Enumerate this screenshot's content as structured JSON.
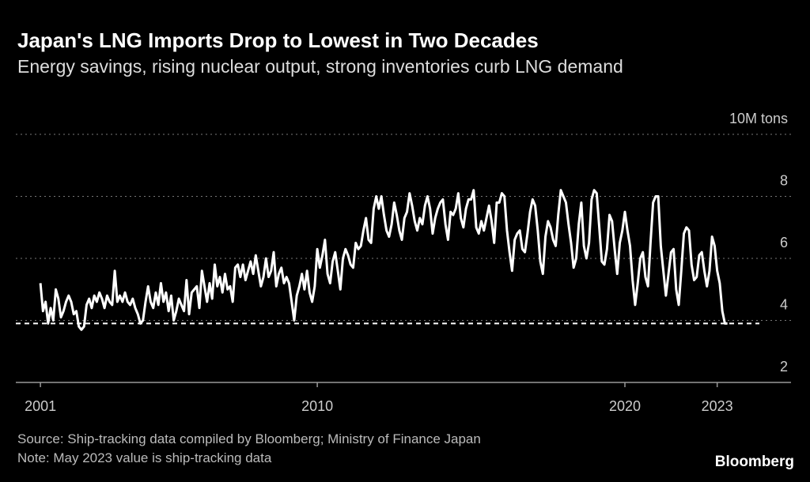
{
  "chart_data": {
    "type": "line",
    "title": "Japan's LNG Imports Drop to Lowest in Two Decades",
    "subtitle": "Energy savings, rising nuclear output, strong inventories curb LNG demand",
    "source": "Source: Ship-tracking data compiled by Bloomberg; Ministry of Finance Japan",
    "note": "Note: May 2023 value is ship-tracking data",
    "brand": "Bloomberg",
    "xlim": [
      2000.2,
      2025.4
    ],
    "xticks": [
      2001,
      2010,
      2020,
      2023
    ],
    "ylim": [
      2,
      10
    ],
    "yticks": [
      2,
      4,
      6,
      8,
      {
        "value": 10,
        "label": "10M tons"
      }
    ],
    "grid": true,
    "reference_line": 3.9,
    "color": "#ffffff",
    "x": [
      2001,
      2001.083,
      2001.167,
      2001.25,
      2001.333,
      2001.417,
      2001.5,
      2001.583,
      2001.667,
      2001.75,
      2001.833,
      2001.917,
      2002,
      2002.083,
      2002.167,
      2002.25,
      2002.333,
      2002.417,
      2002.5,
      2002.583,
      2002.667,
      2002.75,
      2002.833,
      2002.917,
      2003,
      2003.083,
      2003.167,
      2003.25,
      2003.333,
      2003.417,
      2003.5,
      2003.583,
      2003.667,
      2003.75,
      2003.833,
      2003.917,
      2004,
      2004.083,
      2004.167,
      2004.25,
      2004.333,
      2004.417,
      2004.5,
      2004.583,
      2004.667,
      2004.75,
      2004.833,
      2004.917,
      2005,
      2005.083,
      2005.167,
      2005.25,
      2005.333,
      2005.417,
      2005.5,
      2005.583,
      2005.667,
      2005.75,
      2005.833,
      2005.917,
      2006,
      2006.083,
      2006.167,
      2006.25,
      2006.333,
      2006.417,
      2006.5,
      2006.583,
      2006.667,
      2006.75,
      2006.833,
      2006.917,
      2007,
      2007.083,
      2007.167,
      2007.25,
      2007.333,
      2007.417,
      2007.5,
      2007.583,
      2007.667,
      2007.75,
      2007.833,
      2007.917,
      2008,
      2008.083,
      2008.167,
      2008.25,
      2008.333,
      2008.417,
      2008.5,
      2008.583,
      2008.667,
      2008.75,
      2008.833,
      2008.917,
      2009,
      2009.083,
      2009.167,
      2009.25,
      2009.333,
      2009.417,
      2009.5,
      2009.583,
      2009.667,
      2009.75,
      2009.833,
      2009.917,
      2010,
      2010.083,
      2010.167,
      2010.25,
      2010.333,
      2010.417,
      2010.5,
      2010.583,
      2010.667,
      2010.75,
      2010.833,
      2010.917,
      2011,
      2011.083,
      2011.167,
      2011.25,
      2011.333,
      2011.417,
      2011.5,
      2011.583,
      2011.667,
      2011.75,
      2011.833,
      2011.917,
      2012,
      2012.083,
      2012.167,
      2012.25,
      2012.333,
      2012.417,
      2012.5,
      2012.583,
      2012.667,
      2012.75,
      2012.833,
      2012.917,
      2013,
      2013.083,
      2013.167,
      2013.25,
      2013.333,
      2013.417,
      2013.5,
      2013.583,
      2013.667,
      2013.75,
      2013.833,
      2013.917,
      2014,
      2014.083,
      2014.167,
      2014.25,
      2014.333,
      2014.417,
      2014.5,
      2014.583,
      2014.667,
      2014.75,
      2014.833,
      2014.917,
      2015,
      2015.083,
      2015.167,
      2015.25,
      2015.333,
      2015.417,
      2015.5,
      2015.583,
      2015.667,
      2015.75,
      2015.833,
      2015.917,
      2016,
      2016.083,
      2016.167,
      2016.25,
      2016.333,
      2016.417,
      2016.5,
      2016.583,
      2016.667,
      2016.75,
      2016.833,
      2016.917,
      2017,
      2017.083,
      2017.167,
      2017.25,
      2017.333,
      2017.417,
      2017.5,
      2017.583,
      2017.667,
      2017.75,
      2017.833,
      2017.917,
      2018,
      2018.083,
      2018.167,
      2018.25,
      2018.333,
      2018.417,
      2018.5,
      2018.583,
      2018.667,
      2018.75,
      2018.833,
      2018.917,
      2019,
      2019.083,
      2019.167,
      2019.25,
      2019.333,
      2019.417,
      2019.5,
      2019.583,
      2019.667,
      2019.75,
      2019.833,
      2019.917,
      2020,
      2020.083,
      2020.167,
      2020.25,
      2020.333,
      2020.417,
      2020.5,
      2020.583,
      2020.667,
      2020.75,
      2020.833,
      2020.917,
      2021,
      2021.083,
      2021.167,
      2021.25,
      2021.333,
      2021.417,
      2021.5,
      2021.583,
      2021.667,
      2021.75,
      2021.833,
      2021.917,
      2022,
      2022.083,
      2022.167,
      2022.25,
      2022.333,
      2022.417,
      2022.5,
      2022.583,
      2022.667,
      2022.75,
      2022.833,
      2022.917,
      2023,
      2023.083,
      2023.167,
      2023.25,
      2023.333
    ],
    "values": [
      5.2,
      4.3,
      4.6,
      3.9,
      4.4,
      4.0,
      5.0,
      4.7,
      4.1,
      4.3,
      4.6,
      4.8,
      4.6,
      4.2,
      4.3,
      3.8,
      3.7,
      3.8,
      4.5,
      4.7,
      4.4,
      4.8,
      4.6,
      4.9,
      4.7,
      4.4,
      4.8,
      4.6,
      4.5,
      5.6,
      4.6,
      4.8,
      4.6,
      4.9,
      4.6,
      4.5,
      4.7,
      4.4,
      4.2,
      3.9,
      4.0,
      4.6,
      5.1,
      4.6,
      4.4,
      4.9,
      4.5,
      5.2,
      4.6,
      4.9,
      4.3,
      4.8,
      4.0,
      4.3,
      4.7,
      4.5,
      4.3,
      5.3,
      4.2,
      4.9,
      5.0,
      5.1,
      4.4,
      5.6,
      5.1,
      4.6,
      5.2,
      4.7,
      5.8,
      5.1,
      5.4,
      4.9,
      5.5,
      5.0,
      5.1,
      4.6,
      5.7,
      5.8,
      5.4,
      5.8,
      5.3,
      5.6,
      5.9,
      5.5,
      6.1,
      5.6,
      5.1,
      5.4,
      6.0,
      5.4,
      5.6,
      6.2,
      5.1,
      5.5,
      5.7,
      5.2,
      5.4,
      5.2,
      4.6,
      4.0,
      4.8,
      5.1,
      5.5,
      5.0,
      5.6,
      4.9,
      4.6,
      5.1,
      6.3,
      5.7,
      6.1,
      6.6,
      5.5,
      5.2,
      5.9,
      6.2,
      5.6,
      5.0,
      6.0,
      6.3,
      6.1,
      5.8,
      5.7,
      6.5,
      6.3,
      6.4,
      6.9,
      7.3,
      6.6,
      6.5,
      7.6,
      8.0,
      7.6,
      8.0,
      7.4,
      6.9,
      6.7,
      7.1,
      7.8,
      7.4,
      6.9,
      6.6,
      7.3,
      7.5,
      8.1,
      7.7,
      7.2,
      6.9,
      7.3,
      7.1,
      7.7,
      8.0,
      7.6,
      6.8,
      7.3,
      7.6,
      7.8,
      7.9,
      7.1,
      6.6,
      7.5,
      7.4,
      7.6,
      8.1,
      7.3,
      7.0,
      7.6,
      7.9,
      7.9,
      8.2,
      7.0,
      6.8,
      7.2,
      6.9,
      7.3,
      7.7,
      7.2,
      6.5,
      7.8,
      7.8,
      8.1,
      8.0,
      6.9,
      6.2,
      5.6,
      6.6,
      6.8,
      6.9,
      6.3,
      6.2,
      6.8,
      7.5,
      7.9,
      7.7,
      6.9,
      5.9,
      5.5,
      6.7,
      7.2,
      7.0,
      6.6,
      6.4,
      7.4,
      8.2,
      8.0,
      7.8,
      7.1,
      6.5,
      5.7,
      6.0,
      7.1,
      7.8,
      6.4,
      6.0,
      6.5,
      7.9,
      8.2,
      8.1,
      7.0,
      5.9,
      5.8,
      6.3,
      7.4,
      7.2,
      6.3,
      5.5,
      6.5,
      6.9,
      7.5,
      6.9,
      6.4,
      5.3,
      4.5,
      5.2,
      6.0,
      6.2,
      5.4,
      5.1,
      6.5,
      7.8,
      8.0,
      8.0,
      6.4,
      5.6,
      4.8,
      5.5,
      6.2,
      6.3,
      5.0,
      4.5,
      5.6,
      6.8,
      7.0,
      6.9,
      5.8,
      5.3,
      5.4,
      6.1,
      6.2,
      5.6,
      5.1,
      5.6,
      6.7,
      6.4,
      5.6,
      5.2,
      4.3,
      3.9,
      3.9
    ]
  }
}
